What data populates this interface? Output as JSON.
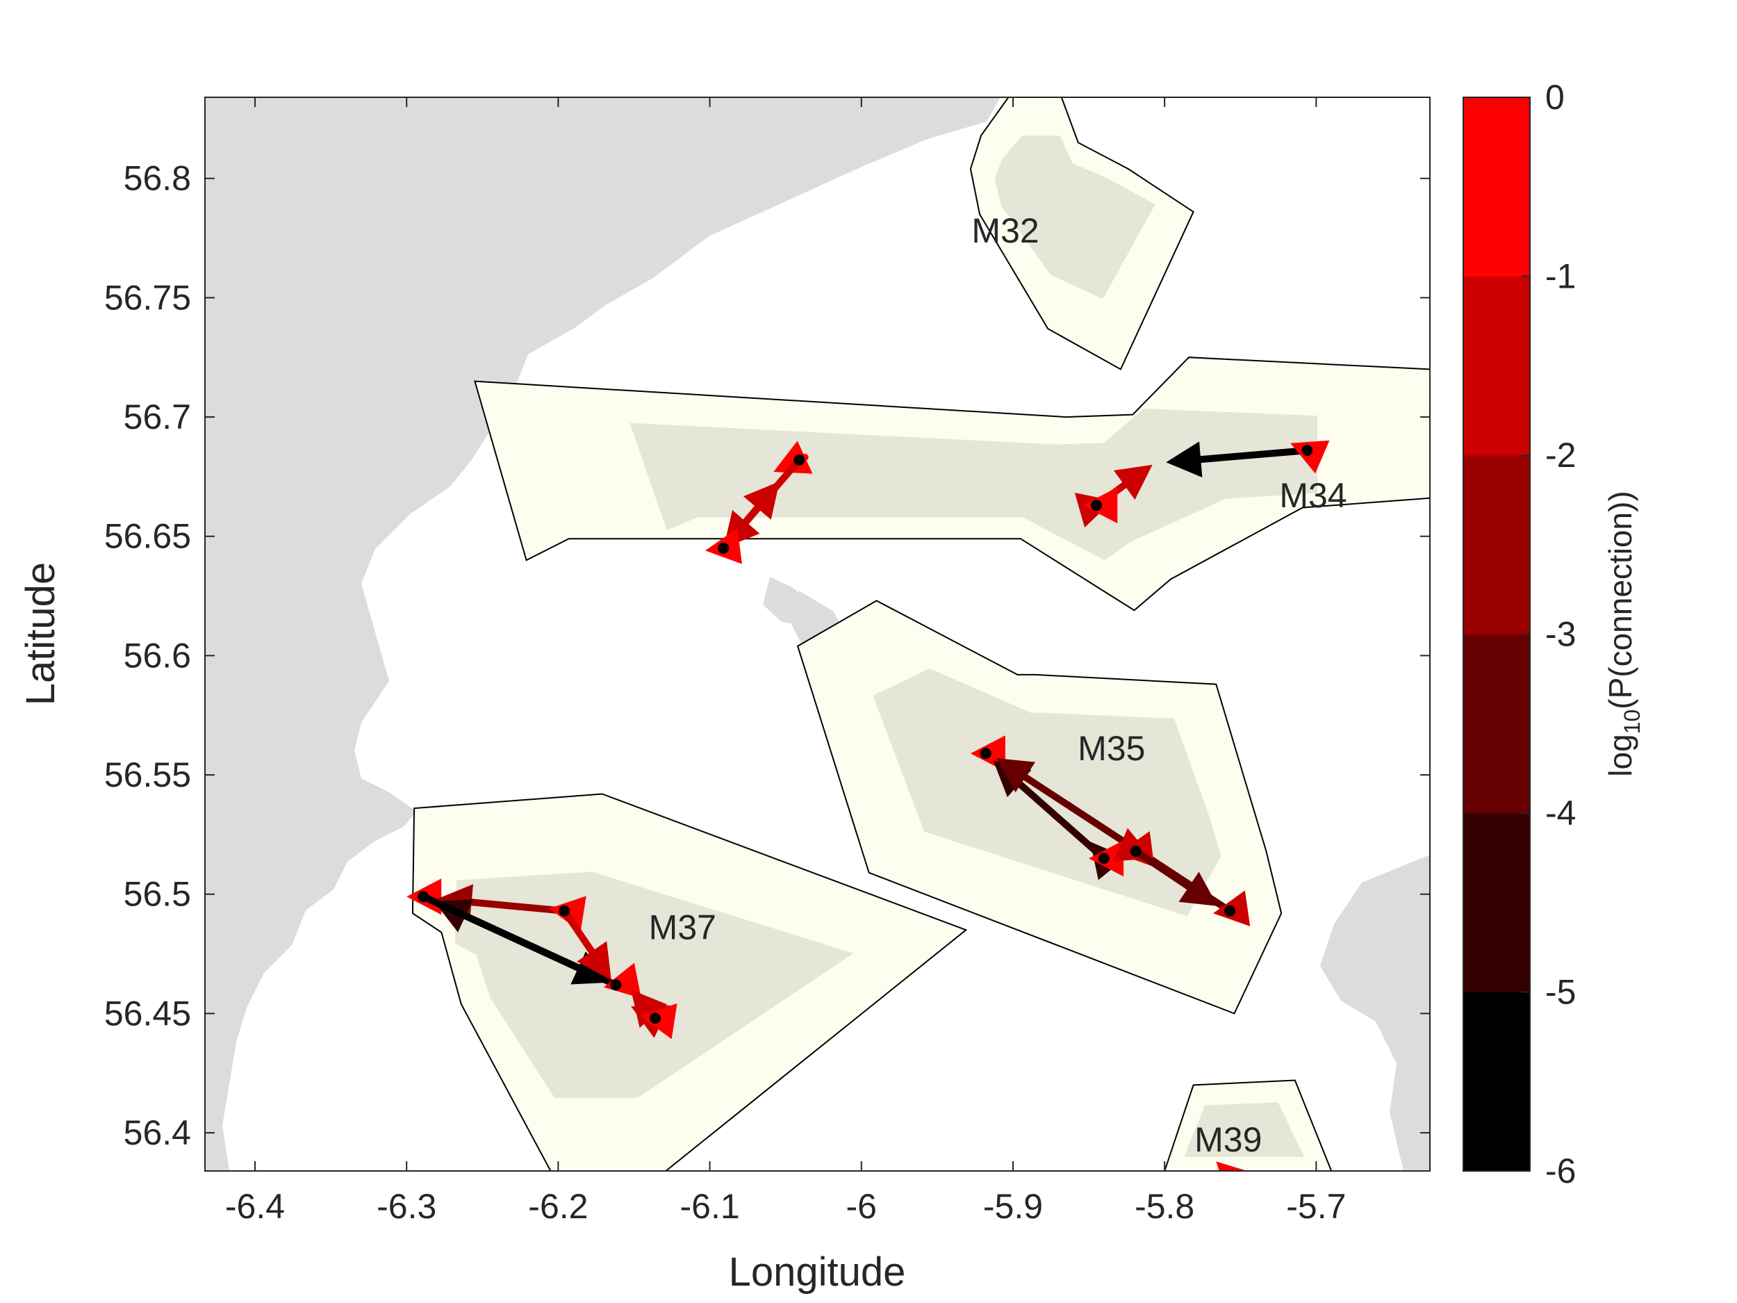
{
  "chart_data": {
    "type": "map",
    "xlabel": "Longitude",
    "ylabel": "Latitude",
    "xlim": [
      -6.433,
      -5.625
    ],
    "ylim": [
      56.384,
      56.834
    ],
    "xticks": [
      -6.4,
      -6.3,
      -6.2,
      -6.1,
      -6.0,
      -5.9,
      -5.8,
      -5.7
    ],
    "xtick_labels": [
      "-6.4",
      "-6.3",
      "-6.2",
      "-6.1",
      "-6",
      "-5.9",
      "-5.8",
      "-5.7"
    ],
    "yticks": [
      56.4,
      56.45,
      56.5,
      56.55,
      56.6,
      56.65,
      56.7,
      56.75,
      56.8
    ],
    "ytick_labels": [
      "56.4",
      "56.45",
      "56.5",
      "56.55",
      "56.6",
      "56.65",
      "56.7",
      "56.75",
      "56.8"
    ],
    "colors": {
      "land": "#dcdcdc",
      "sea": "#ffffff",
      "region_fill": "#fdfdf0",
      "region_inner": "#e0e0d4",
      "region_edge": "#000000"
    },
    "colorbar": {
      "label": "log10(P(connection))",
      "label_main": "log",
      "label_sub": "10",
      "label_rest": "(P(connection))",
      "min": -6,
      "max": 0,
      "tick_labels": [
        "0",
        "-1",
        "-2",
        "-3",
        "-4",
        "-5",
        "-6"
      ],
      "bands": [
        "#000000",
        "#330000",
        "#660000",
        "#990000",
        "#cc0000",
        "#ff0000"
      ]
    },
    "regions": [
      {
        "name": "M32",
        "label_pos": [
          -5.905,
          56.777
        ],
        "vertices": [
          [
            -5.903,
            56.834
          ],
          [
            -5.868,
            56.834
          ],
          [
            -5.857,
            56.815
          ],
          [
            -5.824,
            56.804
          ],
          [
            -5.781,
            56.786
          ],
          [
            -5.829,
            56.72
          ],
          [
            -5.877,
            56.737
          ],
          [
            -5.922,
            56.785
          ],
          [
            -5.928,
            56.804
          ],
          [
            -5.921,
            56.818
          ]
        ]
      },
      {
        "name": "M34",
        "label_pos": [
          -5.702,
          56.666
        ],
        "vertices": [
          [
            -6.255,
            56.715
          ],
          [
            -5.865,
            56.7
          ],
          [
            -5.821,
            56.701
          ],
          [
            -5.784,
            56.725
          ],
          [
            -5.625,
            56.72
          ],
          [
            -5.625,
            56.666
          ],
          [
            -5.709,
            56.662
          ],
          [
            -5.796,
            56.632
          ],
          [
            -5.82,
            56.619
          ],
          [
            -5.895,
            56.649
          ],
          [
            -5.961,
            56.649
          ],
          [
            -6.193,
            56.649
          ],
          [
            -6.221,
            56.64
          ]
        ]
      },
      {
        "name": "M35",
        "label_pos": [
          -5.835,
          56.56
        ],
        "vertices": [
          [
            -6.042,
            56.604
          ],
          [
            -5.99,
            56.623
          ],
          [
            -5.897,
            56.592
          ],
          [
            -5.885,
            56.592
          ],
          [
            -5.766,
            56.588
          ],
          [
            -5.733,
            56.518
          ],
          [
            -5.723,
            56.492
          ],
          [
            -5.754,
            56.45
          ],
          [
            -5.995,
            56.509
          ]
        ]
      },
      {
        "name": "M37",
        "label_pos": [
          -6.118,
          56.485
        ],
        "vertices": [
          [
            -6.295,
            56.536
          ],
          [
            -6.171,
            56.542
          ],
          [
            -5.931,
            56.485
          ],
          [
            -6.129,
            56.384
          ],
          [
            -6.193,
            56.384
          ],
          [
            -6.205,
            56.384
          ],
          [
            -6.264,
            56.454
          ],
          [
            -6.277,
            56.484
          ],
          [
            -6.296,
            56.492
          ]
        ]
      },
      {
        "name": "M39",
        "label_pos": [
          -5.758,
          56.396
        ],
        "vertices": [
          [
            -5.785,
            56.384
          ],
          [
            -5.8,
            56.384
          ],
          [
            -5.781,
            56.42
          ],
          [
            -5.714,
            56.422
          ],
          [
            -5.69,
            56.384
          ]
        ]
      }
    ],
    "connections": [
      {
        "from": [
          -6.041,
          56.682
        ],
        "to": [
          -6.058,
          56.677
        ],
        "level": -0.7
      },
      {
        "from": [
          -6.041,
          56.682
        ],
        "to": [
          -6.091,
          56.645
        ],
        "level": -1.8
      },
      {
        "from": [
          -6.091,
          56.645
        ],
        "to": [
          -6.054,
          56.673
        ],
        "level": -1.4
      },
      {
        "from": [
          -6.091,
          56.645
        ],
        "to": [
          -6.103,
          56.644
        ],
        "level": -0.7
      },
      {
        "from": [
          -5.706,
          56.686
        ],
        "to": [
          -5.799,
          56.681
        ],
        "level": -5.5
      },
      {
        "from": [
          -5.706,
          56.686
        ],
        "to": [
          -5.717,
          56.689
        ],
        "level": -0.8
      },
      {
        "from": [
          -5.845,
          56.663
        ],
        "to": [
          -5.808,
          56.68
        ],
        "level": -1.8
      },
      {
        "from": [
          -5.845,
          56.663
        ],
        "to": [
          -5.834,
          56.665
        ],
        "level": -1.3
      },
      {
        "from": [
          -5.845,
          56.663
        ],
        "to": [
          -5.854,
          56.663
        ],
        "level": -0.7
      },
      {
        "from": [
          -5.918,
          56.559
        ],
        "to": [
          -5.928,
          56.559
        ],
        "level": -0.7
      },
      {
        "from": [
          -5.84,
          56.515
        ],
        "to": [
          -5.913,
          56.556
        ],
        "level": -4.3
      },
      {
        "from": [
          -5.757,
          56.493
        ],
        "to": [
          -5.911,
          56.557
        ],
        "level": -3.6
      },
      {
        "from": [
          -5.84,
          56.515
        ],
        "to": [
          -5.849,
          56.522
        ],
        "level": -4.6
      },
      {
        "from": [
          -5.84,
          56.515
        ],
        "to": [
          -5.85,
          56.515
        ],
        "level": -0.8
      },
      {
        "from": [
          -5.819,
          56.518
        ],
        "to": [
          -5.831,
          56.517
        ],
        "level": -1.5
      },
      {
        "from": [
          -5.819,
          56.518
        ],
        "to": [
          -5.808,
          56.515
        ],
        "level": -1.7
      },
      {
        "from": [
          -5.819,
          56.518
        ],
        "to": [
          -5.765,
          56.495
        ],
        "level": -3.2
      },
      {
        "from": [
          -5.757,
          56.493
        ],
        "to": [
          -5.768,
          56.492
        ],
        "level": -1.4
      },
      {
        "from": [
          -6.289,
          56.499
        ],
        "to": [
          -6.3,
          56.499
        ],
        "level": -0.7
      },
      {
        "from": [
          -6.196,
          56.493
        ],
        "to": [
          -6.28,
          56.498
        ],
        "level": -2.6
      },
      {
        "from": [
          -6.162,
          56.462
        ],
        "to": [
          -6.282,
          56.497
        ],
        "level": -4.4
      },
      {
        "from": [
          -6.289,
          56.499
        ],
        "to": [
          -6.166,
          56.463
        ],
        "level": -5.3
      },
      {
        "from": [
          -6.196,
          56.493
        ],
        "to": [
          -6.206,
          56.494
        ],
        "level": -0.9
      },
      {
        "from": [
          -6.196,
          56.493
        ],
        "to": [
          -6.165,
          56.464
        ],
        "level": -2.0
      },
      {
        "from": [
          -6.162,
          56.462
        ],
        "to": [
          -6.17,
          56.461
        ],
        "level": -0.8
      },
      {
        "from": [
          -6.136,
          56.448
        ],
        "to": [
          -6.152,
          56.453
        ],
        "level": -1.4
      },
      {
        "from": [
          -6.136,
          56.448
        ],
        "to": [
          -6.152,
          56.46
        ],
        "level": -1.2
      },
      {
        "from": [
          -6.136,
          56.448
        ],
        "to": [
          -6.146,
          56.449
        ],
        "level": -0.8
      },
      {
        "from": [
          -5.758,
          56.383
        ],
        "to": [
          -5.766,
          56.388
        ],
        "level": -1.0
      }
    ],
    "sites": [
      {
        "name": "site",
        "pos": [
          -6.041,
          56.682
        ]
      },
      {
        "name": "site",
        "pos": [
          -6.091,
          56.645
        ]
      },
      {
        "name": "site",
        "pos": [
          -5.706,
          56.686
        ]
      },
      {
        "name": "site",
        "pos": [
          -5.845,
          56.663
        ]
      },
      {
        "name": "site",
        "pos": [
          -5.918,
          56.559
        ]
      },
      {
        "name": "site",
        "pos": [
          -5.84,
          56.515
        ]
      },
      {
        "name": "site",
        "pos": [
          -5.819,
          56.518
        ]
      },
      {
        "name": "site",
        "pos": [
          -5.757,
          56.493
        ]
      },
      {
        "name": "site",
        "pos": [
          -6.289,
          56.499
        ]
      },
      {
        "name": "site",
        "pos": [
          -6.196,
          56.493
        ]
      },
      {
        "name": "site",
        "pos": [
          -6.162,
          56.462
        ]
      },
      {
        "name": "site",
        "pos": [
          -6.136,
          56.448
        ]
      }
    ]
  }
}
